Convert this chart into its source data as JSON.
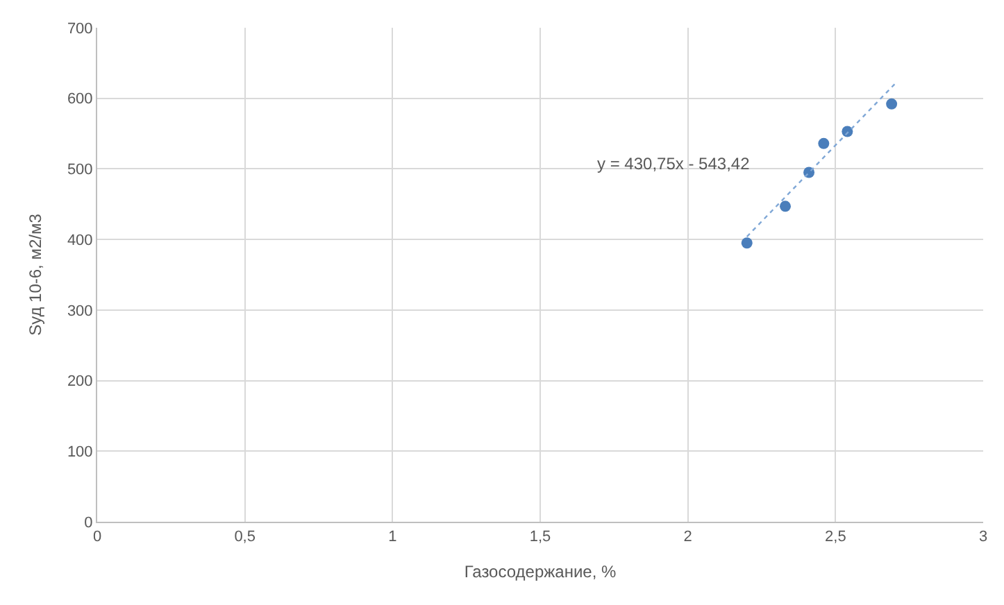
{
  "chart_data": {
    "type": "scatter",
    "xlabel": "Газосодержание, %",
    "ylabel": "Sуд 10-6, м2/м3",
    "x": [
      2.2,
      2.33,
      2.41,
      2.46,
      2.54,
      2.69
    ],
    "series": [
      {
        "color": "#4a7ebb",
        "values": [
          395,
          447,
          495,
          536,
          553,
          592
        ],
        "marker": "circle"
      },
      {
        "type": "line",
        "color": "#7fa7d6",
        "x": [
          2.2,
          2.7
        ],
        "values": [
          404,
          620
        ],
        "line_style": "dotted",
        "marker": "none"
      }
    ],
    "annotations": [
      "y = 430,75x - 543,42"
    ],
    "xlim": [
      0,
      3
    ],
    "ylim": [
      0,
      700
    ],
    "xticks": [
      0,
      {
        "value": 0.5,
        "label": "0,5"
      },
      1,
      {
        "value": 1.5,
        "label": "1,5"
      },
      2,
      {
        "value": 2.5,
        "label": "2,5"
      },
      3
    ],
    "yticks": [
      0,
      100,
      200,
      300,
      400,
      500,
      600,
      700
    ],
    "grid": true
  }
}
